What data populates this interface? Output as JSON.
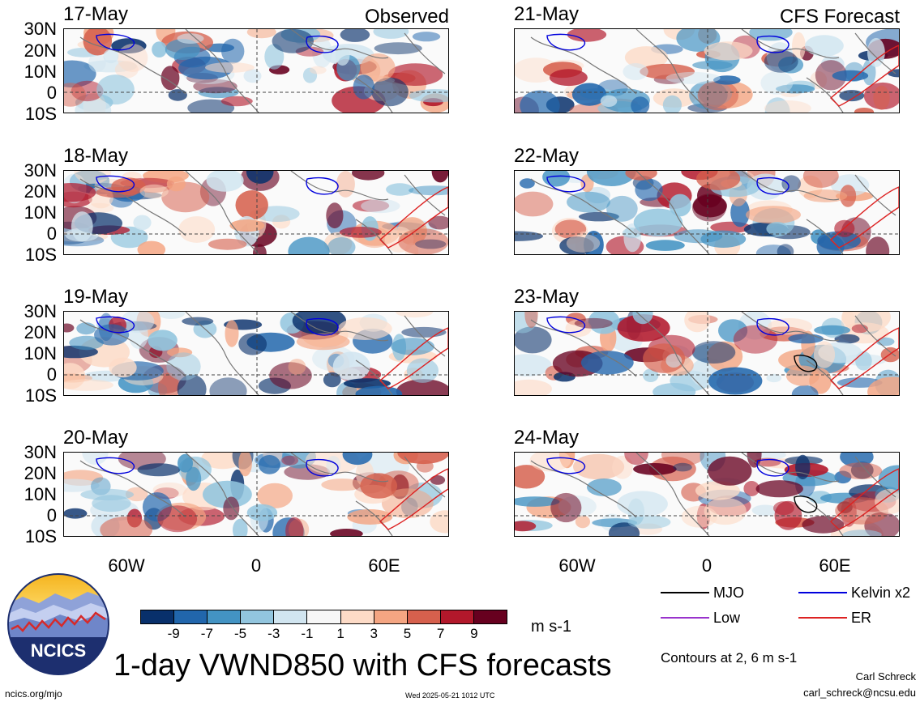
{
  "headers": {
    "left": "Observed",
    "right": "CFS Forecast"
  },
  "panels": {
    "observed": [
      "17-May",
      "18-May",
      "19-May",
      "20-May"
    ],
    "forecast": [
      "21-May",
      "22-May",
      "23-May",
      "24-May"
    ]
  },
  "lat_labels": [
    "30N",
    "20N",
    "10N",
    "0",
    "10S"
  ],
  "lon_labels": [
    "60W",
    "0",
    "60E"
  ],
  "colorbar": {
    "ticks": [
      "-9",
      "-7",
      "-5",
      "-3",
      "-1",
      "1",
      "3",
      "5",
      "7",
      "9"
    ],
    "colors": [
      "#08306b",
      "#2166ac",
      "#4393c3",
      "#92c5de",
      "#d1e5f0",
      "#f7f7f7",
      "#fddbc7",
      "#f4a582",
      "#d6604d",
      "#b2182b",
      "#67001f"
    ],
    "units": "m s-1"
  },
  "legend": {
    "mjo": {
      "label": "MJO",
      "color": "#000000"
    },
    "kelvin": {
      "label": "Kelvin x2",
      "color": "#0000dd"
    },
    "low": {
      "label": "Low",
      "color": "#9933cc"
    },
    "er": {
      "label": "ER",
      "color": "#dd2222"
    },
    "contours_note": "Contours at 2, 6 m s-1"
  },
  "logo_text": "NCICS",
  "main_title": "1-day VWND850 with CFS forecasts",
  "footer": {
    "url": "ncics.org/mjo",
    "timestamp": "Wed 2025-05-21 1012 UTC",
    "author": "Carl Schreck",
    "email": "carl_schreck@ncsu.edu"
  }
}
